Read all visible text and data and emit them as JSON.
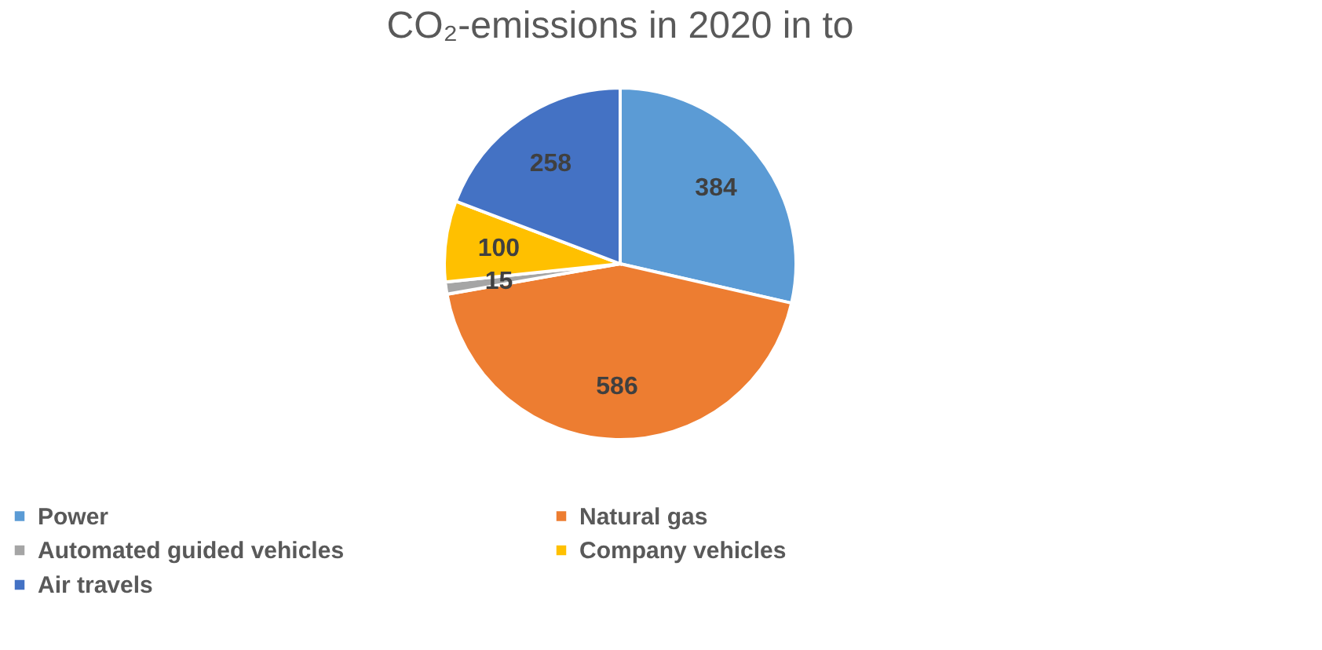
{
  "chart_data": {
    "type": "pie",
    "title": "CO₂-emissions in 2020 in to",
    "categories": [
      "Power",
      "Natural gas",
      "Automated guided vehicles",
      "Company vehicles",
      "Air travels"
    ],
    "values": [
      384,
      586,
      15,
      100,
      258
    ],
    "colors": [
      "#5b9bd5",
      "#ed7d31",
      "#a5a5a5",
      "#ffc000",
      "#4472c4"
    ],
    "data_labels": true,
    "legend": "bottom"
  }
}
